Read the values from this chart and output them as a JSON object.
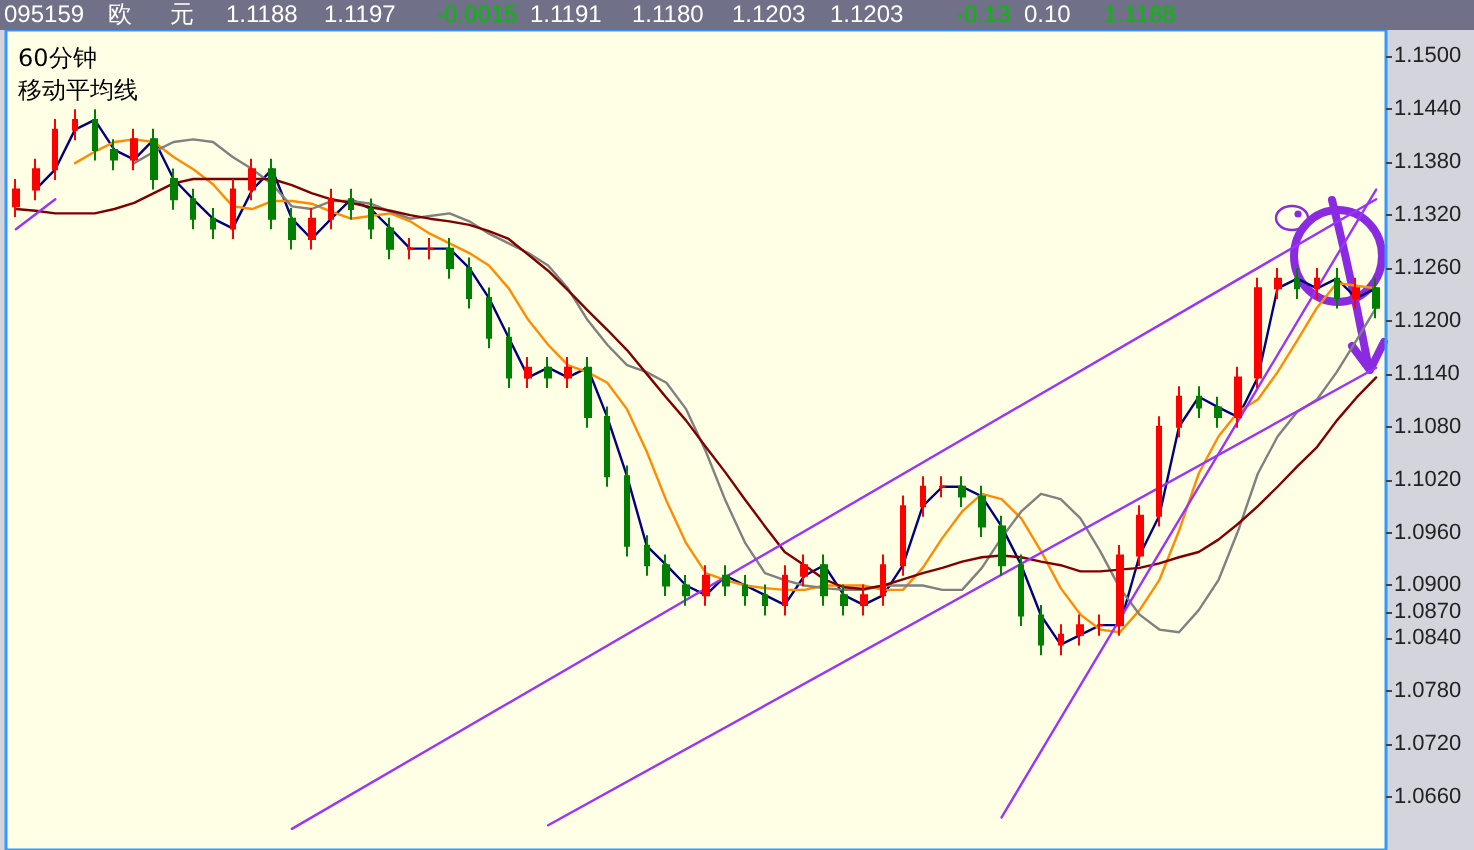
{
  "chart_data": {
    "type": "candlestick",
    "title": "60分钟",
    "subtitle": "移动平均线",
    "annotations": [
      "095159",
      "欧",
      "元",
      "1.1188",
      "1.1197",
      "-0.0015",
      "1.1191",
      "1.1180",
      "1.1203",
      "1.1203",
      "-0.13",
      "0.10",
      "1.1188"
    ],
    "categories": [
      null,
      null,
      null,
      null,
      null,
      null,
      null,
      null,
      null,
      null,
      null,
      null,
      null,
      null,
      null,
      null,
      null,
      null,
      null,
      null,
      null,
      null,
      null,
      null,
      null,
      null,
      null,
      null,
      null,
      null,
      null,
      null,
      null,
      null,
      null,
      null,
      null,
      null,
      null,
      null,
      null,
      null,
      null,
      null,
      null,
      null,
      null,
      null,
      null,
      null,
      null,
      null,
      null,
      null,
      null,
      null,
      null,
      null,
      null,
      null,
      null,
      null,
      null,
      null,
      null,
      null,
      null,
      null,
      null,
      null
    ],
    "ohlc": [
      [
        1.133,
        1.1361,
        1.1318,
        1.1349
      ],
      [
        1.1349,
        1.1384,
        1.1337,
        1.1372
      ],
      [
        1.1372,
        1.1429,
        1.136,
        1.1417
      ],
      [
        1.1417,
        1.144,
        1.1405,
        1.1428
      ],
      [
        1.1428,
        1.144,
        1.1382,
        1.1394
      ],
      [
        1.1394,
        1.1406,
        1.1371,
        1.1383
      ],
      [
        1.1383,
        1.1418,
        1.1371,
        1.1406
      ],
      [
        1.1406,
        1.1418,
        1.1349,
        1.1361
      ],
      [
        1.1361,
        1.1373,
        1.1326,
        1.1338
      ],
      [
        1.1338,
        1.135,
        1.1304,
        1.1316
      ],
      [
        1.1316,
        1.1328,
        1.1293,
        1.1305
      ],
      [
        1.1305,
        1.1361,
        1.1293,
        1.1349
      ],
      [
        1.1349,
        1.1384,
        1.1337,
        1.1372
      ],
      [
        1.1372,
        1.1384,
        1.1304,
        1.1316
      ],
      [
        1.1316,
        1.1328,
        1.1281,
        1.1293
      ],
      [
        1.1293,
        1.1328,
        1.1281,
        1.1316
      ],
      [
        1.1316,
        1.135,
        1.1304,
        1.1338
      ],
      [
        1.1338,
        1.135,
        1.1315,
        1.1327
      ],
      [
        1.1327,
        1.1339,
        1.1293,
        1.1305
      ],
      [
        1.1305,
        1.1317,
        1.127,
        1.1282
      ],
      [
        1.1282,
        1.1294,
        1.127,
        1.1282
      ],
      [
        1.1282,
        1.1294,
        1.127,
        1.1282
      ],
      [
        1.1282,
        1.1294,
        1.1248,
        1.126
      ],
      [
        1.126,
        1.1272,
        1.1214,
        1.1226
      ],
      [
        1.1226,
        1.1238,
        1.1169,
        1.1181
      ],
      [
        1.1181,
        1.1193,
        1.1124,
        1.1136
      ],
      [
        1.1136,
        1.1159,
        1.1124,
        1.1147
      ],
      [
        1.1147,
        1.1159,
        1.1124,
        1.1136
      ],
      [
        1.1136,
        1.1159,
        1.1124,
        1.1147
      ],
      [
        1.1147,
        1.1159,
        1.1079,
        1.1091
      ],
      [
        1.1091,
        1.1103,
        1.1012,
        1.1024
      ],
      [
        1.1024,
        1.1036,
        1.0933,
        1.0945
      ],
      [
        1.0945,
        1.0957,
        1.0911,
        1.0923
      ],
      [
        1.0923,
        1.0935,
        1.0888,
        1.09
      ],
      [
        1.09,
        1.0912,
        1.0877,
        1.0889
      ],
      [
        1.0889,
        1.0923,
        1.0877,
        1.0911
      ],
      [
        1.0911,
        1.0923,
        1.0888,
        1.09
      ],
      [
        1.09,
        1.0912,
        1.0877,
        1.0889
      ],
      [
        1.0889,
        1.0901,
        1.0866,
        1.0878
      ],
      [
        1.0878,
        1.0923,
        1.0866,
        1.0911
      ],
      [
        1.0911,
        1.0935,
        1.0899,
        1.0923
      ],
      [
        1.0923,
        1.0935,
        1.0877,
        1.0889
      ],
      [
        1.0889,
        1.0901,
        1.0866,
        1.0878
      ],
      [
        1.0878,
        1.0901,
        1.0866,
        1.0889
      ],
      [
        1.0889,
        1.0935,
        1.0877,
        1.0923
      ],
      [
        1.0923,
        1.1002,
        1.0911,
        1.099
      ],
      [
        1.099,
        1.1024,
        1.0978,
        1.1012
      ],
      [
        1.1012,
        1.1024,
        1.1,
        1.1012
      ],
      [
        1.1012,
        1.1024,
        1.0989,
        1.1001
      ],
      [
        1.1001,
        1.1013,
        1.0955,
        1.0967
      ],
      [
        1.0967,
        1.0979,
        1.0911,
        1.0923
      ],
      [
        1.0923,
        1.0935,
        1.0854,
        1.0866
      ],
      [
        1.0866,
        1.0878,
        1.0821,
        1.0833
      ],
      [
        1.0833,
        1.0856,
        1.0821,
        1.0844
      ],
      [
        1.0844,
        1.0867,
        1.0832,
        1.0855
      ],
      [
        1.0855,
        1.0867,
        1.0843,
        1.0855
      ],
      [
        1.0855,
        1.0946,
        1.0843,
        1.0934
      ],
      [
        1.0934,
        1.0991,
        1.0922,
        1.0979
      ],
      [
        1.0979,
        1.1092,
        1.0967,
        1.108
      ],
      [
        1.108,
        1.1126,
        1.1068,
        1.1114
      ],
      [
        1.1114,
        1.1126,
        1.109,
        1.1102
      ],
      [
        1.1102,
        1.1114,
        1.1079,
        1.1091
      ],
      [
        1.1091,
        1.1148,
        1.1079,
        1.1136
      ],
      [
        1.1136,
        1.1249,
        1.1124,
        1.1237
      ],
      [
        1.1237,
        1.126,
        1.1225,
        1.1248
      ],
      [
        1.1248,
        1.126,
        1.1225,
        1.1237
      ],
      [
        1.1237,
        1.126,
        1.1225,
        1.1248
      ],
      [
        1.1248,
        1.126,
        1.1214,
        1.1226
      ],
      [
        1.1226,
        1.1249,
        1.1214,
        1.1237
      ],
      [
        1.1237,
        1.1249,
        1.1203,
        1.1215
      ]
    ],
    "series": [
      {
        "type": "line",
        "color": "#000080",
        "values": [
          null,
          1.1349,
          1.1372,
          1.1417,
          1.1428,
          1.1394,
          1.1383,
          1.1406,
          1.1361,
          1.1338,
          1.1316,
          1.1305,
          1.1349,
          1.1372,
          1.1316,
          1.1293,
          1.1316,
          1.1338,
          1.1327,
          1.1305,
          1.1282,
          1.1282,
          1.1282,
          1.126,
          1.1226,
          1.1181,
          1.1136,
          1.1147,
          1.1136,
          1.1147,
          1.1091,
          1.1024,
          1.0945,
          1.0923,
          1.09,
          1.0889,
          1.0911,
          1.09,
          1.0889,
          1.0878,
          1.0911,
          1.0923,
          1.0889,
          1.0878,
          1.0889,
          1.0923,
          1.099,
          1.1012,
          1.1012,
          1.1001,
          1.0967,
          1.0923,
          1.0866,
          1.0833,
          1.0844,
          1.0855,
          1.0855,
          1.0934,
          1.0979,
          1.108,
          1.1114,
          1.1102,
          1.1091,
          1.1136,
          1.1237,
          1.1248,
          1.1237,
          1.1248,
          1.1226,
          1.1237
        ]
      },
      {
        "type": "line",
        "color": "#ff8c00",
        "values": [
          null,
          null,
          null,
          1.1379,
          1.1392,
          1.1403,
          1.1406,
          1.1403,
          1.1386,
          1.1372,
          1.1355,
          1.133,
          1.1327,
          1.1336,
          1.1336,
          1.1333,
          1.1324,
          1.1316,
          1.1319,
          1.1322,
          1.1313,
          1.1299,
          1.1288,
          1.1277,
          1.1263,
          1.1237,
          1.1201,
          1.1173,
          1.115,
          1.1142,
          1.113,
          1.11,
          1.1052,
          1.0996,
          1.0948,
          1.0914,
          1.0906,
          1.09,
          1.0897,
          1.0895,
          1.0895,
          1.09,
          1.09,
          1.09,
          1.0895,
          1.0895,
          1.092,
          1.0954,
          1.0984,
          1.1004,
          1.0998,
          1.0976,
          1.0939,
          1.0897,
          1.0867,
          1.085,
          1.0847,
          1.0872,
          1.0906,
          1.0962,
          1.1027,
          1.1069,
          1.1097,
          1.1111,
          1.1142,
          1.1178,
          1.1215,
          1.1243,
          1.124,
          1.1237
        ]
      },
      {
        "type": "line",
        "color": "#808080",
        "values": [
          null,
          null,
          null,
          null,
          null,
          null,
          1.1379,
          1.1392,
          1.1403,
          1.1406,
          1.1403,
          1.1386,
          1.1372,
          1.1355,
          1.133,
          1.1327,
          1.1336,
          1.1336,
          1.1333,
          1.1324,
          1.1316,
          1.1319,
          1.1322,
          1.1313,
          1.1299,
          1.1288,
          1.1277,
          1.1263,
          1.1237,
          1.1201,
          1.1173,
          1.115,
          1.1142,
          1.113,
          1.11,
          1.1052,
          1.0996,
          1.0948,
          1.0914,
          1.0906,
          1.09,
          1.0897,
          1.0895,
          1.0895,
          1.09,
          1.09,
          1.09,
          1.0895,
          1.0895,
          1.092,
          1.0954,
          1.0984,
          1.1004,
          1.0998,
          1.0976,
          1.0939,
          1.0897,
          1.0867,
          1.085,
          1.0847,
          1.0872,
          1.0906,
          1.0962,
          1.1027,
          1.1069,
          1.1097,
          1.1111,
          1.1142,
          1.1178,
          1.1215
        ]
      },
      {
        "type": "line",
        "color": "#800000",
        "values": [
          1.1327,
          1.1325,
          1.1322,
          1.1322,
          1.1322,
          1.1327,
          1.1334,
          1.1345,
          1.1356,
          1.1361,
          1.1361,
          1.1361,
          1.1361,
          1.1361,
          1.1354,
          1.1345,
          1.1338,
          1.1334,
          1.1329,
          1.1325,
          1.132,
          1.1316,
          1.1313,
          1.1309,
          1.1302,
          1.1293,
          1.1275,
          1.1257,
          1.1235,
          1.1212,
          1.119,
          1.1167,
          1.114,
          1.1113,
          1.1087,
          1.1057,
          1.1028,
          1.0997,
          1.0967,
          1.0938,
          1.0923,
          1.0907,
          1.0898,
          1.0896,
          1.09,
          1.0907,
          1.0914,
          1.092,
          1.0927,
          1.0932,
          1.0934,
          1.0932,
          1.0927,
          1.0923,
          1.0916,
          1.0916,
          1.0918,
          1.092,
          1.0925,
          1.0932,
          1.0938,
          1.0952,
          1.097,
          1.099,
          1.1012,
          1.1035,
          1.1057,
          1.1087,
          1.1113,
          1.1136
        ]
      },
      {
        "type": "line",
        "color": "#9933ff",
        "values": [
          null,
          null,
          null,
          null,
          null,
          null,
          null,
          null,
          null,
          null,
          null,
          null,
          null,
          null,
          1.0624,
          null,
          null,
          null,
          null,
          null,
          null,
          null,
          null,
          null,
          null,
          null,
          null,
          null,
          null,
          null,
          null,
          null,
          null,
          null,
          null,
          null,
          null,
          null,
          null,
          null,
          null,
          null,
          null,
          null,
          null,
          null,
          null,
          null,
          null,
          null,
          null,
          null,
          null,
          null,
          null,
          null,
          null,
          null,
          null,
          null,
          null,
          null,
          null,
          null,
          null,
          null,
          null,
          null,
          null,
          1.1338
        ]
      },
      {
        "type": "line",
        "color": "#9933ff",
        "values": [
          null,
          null,
          null,
          null,
          null,
          null,
          null,
          null,
          null,
          null,
          null,
          null,
          null,
          null,
          null,
          null,
          null,
          null,
          null,
          null,
          null,
          null,
          null,
          null,
          null,
          null,
          null,
          1.0628,
          null,
          null,
          null,
          null,
          null,
          null,
          null,
          null,
          null,
          null,
          null,
          null,
          null,
          null,
          null,
          null,
          null,
          null,
          null,
          null,
          null,
          null,
          null,
          null,
          null,
          null,
          null,
          null,
          null,
          null,
          null,
          null,
          null,
          null,
          null,
          null,
          null,
          null,
          null,
          null,
          null,
          1.1147
        ]
      },
      {
        "type": "line",
        "color": "#9933ff",
        "values": [
          null,
          null,
          null,
          null,
          null,
          null,
          null,
          null,
          null,
          null,
          null,
          null,
          null,
          null,
          null,
          null,
          null,
          null,
          null,
          null,
          null,
          null,
          null,
          null,
          null,
          null,
          null,
          null,
          null,
          null,
          null,
          null,
          null,
          null,
          null,
          null,
          null,
          null,
          null,
          null,
          null,
          null,
          null,
          null,
          null,
          null,
          null,
          null,
          null,
          null,
          1.0637,
          null,
          null,
          null,
          null,
          null,
          null,
          null,
          null,
          null,
          null,
          null,
          null,
          null,
          null,
          null,
          null,
          null,
          null,
          1.1349
        ]
      },
      {
        "type": "line",
        "color": "#9933ff",
        "values": [
          1.1304,
          null,
          1.1338,
          null,
          null,
          null,
          null,
          null,
          null,
          null,
          null,
          null,
          null,
          null,
          null,
          null,
          null,
          null,
          null,
          null,
          null,
          null,
          null,
          null,
          null,
          null,
          null,
          null,
          null,
          null,
          null,
          null,
          null,
          null,
          null,
          null,
          null,
          null,
          null,
          null,
          null,
          null,
          null,
          null,
          null,
          null,
          null,
          null,
          null,
          null,
          null,
          null,
          null,
          null,
          null,
          null,
          null,
          null,
          null,
          null,
          null,
          null,
          null,
          null,
          null,
          null,
          null,
          null,
          null,
          null
        ]
      }
    ],
    "ylim": [
      1.06,
      1.153
    ],
    "yticks": [
      {
        "value": 1.066,
        "label": "1.0660"
      },
      {
        "value": 1.072,
        "label": "1.0720"
      },
      {
        "value": 1.078,
        "label": "1.0780"
      },
      {
        "value": 1.084,
        "label": "1.0840"
      },
      {
        "value": 1.087,
        "label": "1.0870"
      },
      {
        "value": 1.09,
        "label": "1.0900"
      },
      {
        "value": 1.096,
        "label": "1.0960"
      },
      {
        "value": 1.102,
        "label": "1.1020"
      },
      {
        "value": 1.108,
        "label": "1.1080"
      },
      {
        "value": 1.114,
        "label": "1.1140"
      },
      {
        "value": 1.12,
        "label": "1.1200"
      },
      {
        "value": 1.126,
        "label": "1.1260"
      },
      {
        "value": 1.132,
        "label": "1.1320"
      },
      {
        "value": 1.138,
        "label": "1.1380"
      },
      {
        "value": 1.144,
        "label": "1.1440"
      },
      {
        "value": 1.15,
        "label": "1.1500"
      }
    ],
    "tick_labels": "y",
    "marker": "none"
  }
}
